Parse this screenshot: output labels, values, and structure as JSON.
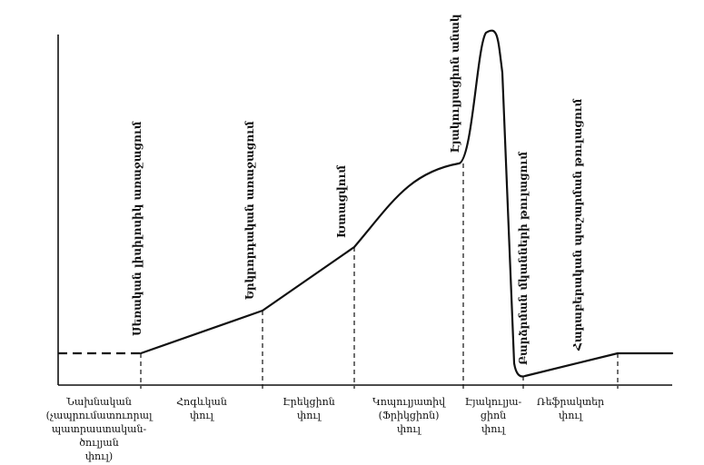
{
  "diagram": {
    "baseline_label_note": "",
    "event_labels": [
      "Սեռական լիսիլոսիկ առաջացում",
      "Երկրորդական առաջացում",
      "Խտացվում",
      "Էյակուլյացիոն անակ",
      "Բարձրման մկանների թուլացում",
      "Հարաբերական պաշարման թուլացում"
    ],
    "phase_labels": [
      [
        "Նախնական",
        "(չապրումատուորալ",
        "պատրաստական-",
        "ծուլյան",
        "փուլ)"
      ],
      [
        "Հոգևկան",
        "փուլ"
      ],
      [
        "Էրեկցիոն",
        "փուլ"
      ],
      [
        "Կոպուլյատիվ",
        "(Ֆրիկցիոն)",
        "փուլ"
      ],
      [
        "Էյակուլյա-",
        "ցիոն",
        "փուլ"
      ],
      [
        "Ռեֆրակտեր",
        "փուլ"
      ]
    ]
  }
}
